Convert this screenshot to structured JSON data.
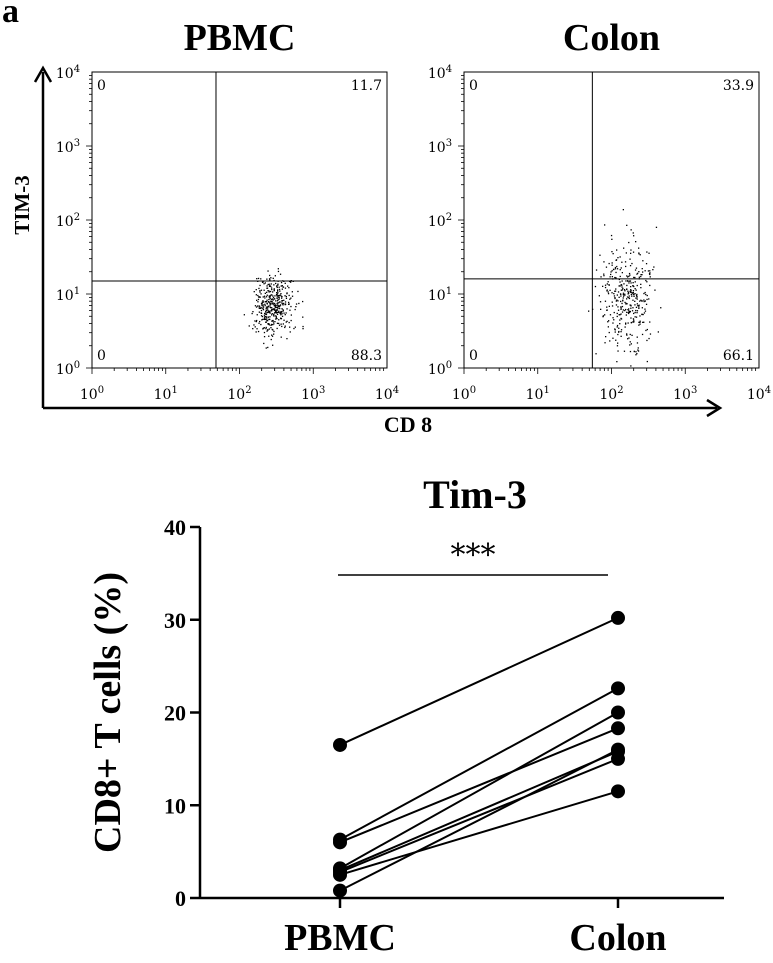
{
  "panel_label": "a",
  "chart_data": [
    {
      "type": "scatter",
      "title": "PBMC",
      "xlabel": "CD 8",
      "ylabel": "TIM-3",
      "xscale": "log",
      "yscale": "log",
      "xlim": [
        1,
        10000
      ],
      "ylim": [
        1,
        10000
      ],
      "x_ticks": [
        {
          "base": "10",
          "exp": "0"
        },
        {
          "base": "10",
          "exp": "1"
        },
        {
          "base": "10",
          "exp": "2"
        },
        {
          "base": "10",
          "exp": "3"
        },
        {
          "base": "10",
          "exp": "4"
        }
      ],
      "y_ticks": [
        {
          "base": "10",
          "exp": "0"
        },
        {
          "base": "10",
          "exp": "1"
        },
        {
          "base": "10",
          "exp": "2"
        },
        {
          "base": "10",
          "exp": "3"
        },
        {
          "base": "10",
          "exp": "4"
        }
      ],
      "gate": {
        "x": 48,
        "y": 15
      },
      "quadrant_labels": {
        "top_left": "0",
        "top_right": "11.7",
        "bottom_left": "0",
        "bottom_right": "88.3"
      },
      "population": {
        "x_center": 280,
        "y_center": 7,
        "x_spread": 0.13,
        "y_spread": 0.2,
        "count": 420,
        "seed": 7
      }
    },
    {
      "type": "scatter",
      "title": "Colon",
      "xlabel": "CD 8",
      "ylabel": "TIM-3",
      "xscale": "log",
      "yscale": "log",
      "xlim": [
        1,
        10000
      ],
      "ylim": [
        1,
        10000
      ],
      "x_ticks": [
        {
          "base": "10",
          "exp": "0"
        },
        {
          "base": "10",
          "exp": "1"
        },
        {
          "base": "10",
          "exp": "2"
        },
        {
          "base": "10",
          "exp": "3"
        },
        {
          "base": "10",
          "exp": "4"
        }
      ],
      "y_ticks": [
        {
          "base": "10",
          "exp": "0"
        },
        {
          "base": "10",
          "exp": "1"
        },
        {
          "base": "10",
          "exp": "2"
        },
        {
          "base": "10",
          "exp": "3"
        },
        {
          "base": "10",
          "exp": "4"
        }
      ],
      "gate": {
        "x": 55,
        "y": 16
      },
      "quadrant_labels": {
        "top_left": "0",
        "top_right": "33.9",
        "bottom_left": "0",
        "bottom_right": "66.1"
      },
      "population": {
        "x_center": 160,
        "y_center": 9,
        "x_spread": 0.18,
        "y_spread": 0.36,
        "count": 380,
        "seed": 13
      }
    },
    {
      "type": "line",
      "title": "Tim-3",
      "xlabel": "",
      "ylabel": "CD8+ T cells (%)",
      "categories": [
        "PBMC",
        "Colon"
      ],
      "ylim": [
        0,
        40
      ],
      "yticks": [
        "0",
        "10",
        "20",
        "30",
        "40"
      ],
      "significance": "***",
      "paired_values": [
        [
          16.5,
          30.2
        ],
        [
          6.3,
          22.6
        ],
        [
          6.0,
          18.3
        ],
        [
          3.2,
          20.0
        ],
        [
          3.0,
          15.8
        ],
        [
          2.8,
          15.0
        ],
        [
          2.5,
          11.5
        ],
        [
          0.8,
          16.0
        ]
      ]
    }
  ]
}
